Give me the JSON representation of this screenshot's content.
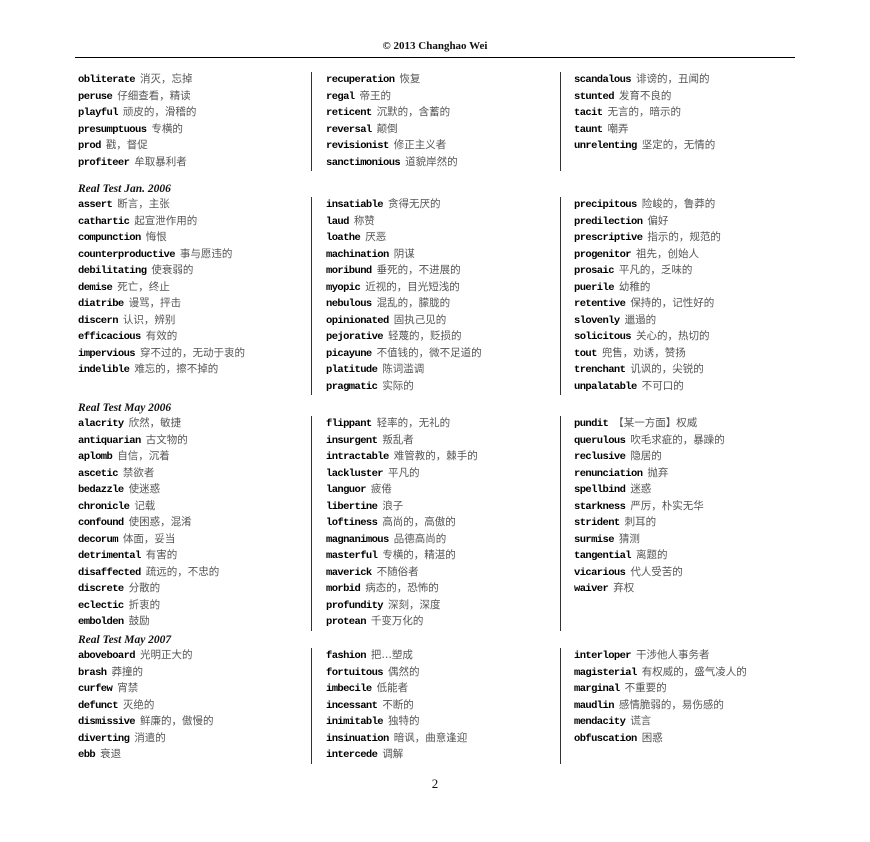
{
  "header": "© 2013 Changhao Wei",
  "page_number": "2",
  "sections": [
    {
      "title": "",
      "columns": [
        [
          {
            "w": "obliterate",
            "d": "消灭，忘掉"
          },
          {
            "w": "peruse",
            "d": "仔细查看，精读"
          },
          {
            "w": "playful",
            "d": "顽皮的，滑稽的"
          },
          {
            "w": "presumptuous",
            "d": "专横的"
          },
          {
            "w": "prod",
            "d": "戳，督促"
          },
          {
            "w": "profiteer",
            "d": "牟取暴利者"
          }
        ],
        [
          {
            "w": "recuperation",
            "d": "恢复"
          },
          {
            "w": "regal",
            "d": "帝王的"
          },
          {
            "w": "reticent",
            "d": "沉默的，含蓄的"
          },
          {
            "w": "reversal",
            "d": "颠倒"
          },
          {
            "w": "revisionist",
            "d": "修正主义者"
          },
          {
            "w": "sanctimonious",
            "d": "道貌岸然的"
          }
        ],
        [
          {
            "w": "scandalous",
            "d": "诽谤的，丑闻的"
          },
          {
            "w": "stunted",
            "d": "发育不良的"
          },
          {
            "w": "tacit",
            "d": "无言的，暗示的"
          },
          {
            "w": "taunt",
            "d": "嘲弄"
          },
          {
            "w": "unrelenting",
            "d": "坚定的，无情的"
          }
        ]
      ]
    },
    {
      "title": "Real Test Jan. 2006",
      "columns": [
        [
          {
            "w": "assert",
            "d": "断言，主张"
          },
          {
            "w": "cathartic",
            "d": "起宣泄作用的"
          },
          {
            "w": "compunction",
            "d": "悔恨"
          },
          {
            "w": "counterproductive",
            "d": "事与愿违的"
          },
          {
            "w": "debilitating",
            "d": "使衰弱的"
          },
          {
            "w": "demise",
            "d": "死亡，终止"
          },
          {
            "w": "diatribe",
            "d": "谩骂，抨击"
          },
          {
            "w": "discern",
            "d": "认识，辨别"
          },
          {
            "w": "efficacious",
            "d": "有效的"
          },
          {
            "w": "impervious",
            "d": "穿不过的，无动于衷的"
          },
          {
            "w": "indelible",
            "d": "难忘的，擦不掉的"
          }
        ],
        [
          {
            "w": "insatiable",
            "d": "贪得无厌的"
          },
          {
            "w": "laud",
            "d": "称赞"
          },
          {
            "w": "loathe",
            "d": "厌恶"
          },
          {
            "w": "machination",
            "d": "阴谋"
          },
          {
            "w": "moribund",
            "d": "垂死的，不进展的"
          },
          {
            "w": "myopic",
            "d": "近视的，目光短浅的"
          },
          {
            "w": "nebulous",
            "d": "混乱的，朦胧的"
          },
          {
            "w": "opinionated",
            "d": "固执己见的"
          },
          {
            "w": "pejorative",
            "d": "轻蔑的，贬损的"
          },
          {
            "w": "picayune",
            "d": "不值钱的，微不足道的"
          },
          {
            "w": "platitude",
            "d": "陈词滥调"
          },
          {
            "w": "pragmatic",
            "d": "实际的"
          }
        ],
        [
          {
            "w": "precipitous",
            "d": "险峻的，鲁莽的"
          },
          {
            "w": "predilection",
            "d": "偏好"
          },
          {
            "w": "prescriptive",
            "d": "指示的，规范的"
          },
          {
            "w": "progenitor",
            "d": "祖先，创始人"
          },
          {
            "w": "prosaic",
            "d": "平凡的，乏味的"
          },
          {
            "w": "puerile",
            "d": "幼稚的"
          },
          {
            "w": "retentive",
            "d": "保持的，记性好的"
          },
          {
            "w": "slovenly",
            "d": "邋遢的"
          },
          {
            "w": "solicitous",
            "d": "关心的，热切的"
          },
          {
            "w": "tout",
            "d": "兜售，劝诱，赞扬"
          },
          {
            "w": "trenchant",
            "d": "讥讽的，尖锐的"
          },
          {
            "w": "unpalatable",
            "d": "不可口的"
          }
        ]
      ]
    },
    {
      "title": "Real Test May 2006",
      "columns": [
        [
          {
            "w": "alacrity",
            "d": "欣然，敏捷"
          },
          {
            "w": "antiquarian",
            "d": "古文物的"
          },
          {
            "w": "aplomb",
            "d": "自信，沉着"
          },
          {
            "w": "ascetic",
            "d": "禁欲者"
          },
          {
            "w": "bedazzle",
            "d": "使迷惑"
          },
          {
            "w": "chronicle",
            "d": "记载"
          },
          {
            "w": "confound",
            "d": "使困惑，混淆"
          },
          {
            "w": "decorum",
            "d": "体面，妥当"
          },
          {
            "w": "detrimental",
            "d": "有害的"
          },
          {
            "w": "disaffected",
            "d": "疏远的，不忠的"
          },
          {
            "w": "discrete",
            "d": "分散的"
          },
          {
            "w": "eclectic",
            "d": "折衷的"
          },
          {
            "w": "embolden",
            "d": "鼓励"
          }
        ],
        [
          {
            "w": "flippant",
            "d": "轻率的，无礼的"
          },
          {
            "w": "insurgent",
            "d": "叛乱者"
          },
          {
            "w": "intractable",
            "d": "难管教的，棘手的"
          },
          {
            "w": "lackluster",
            "d": "平凡的"
          },
          {
            "w": "languor",
            "d": "疲倦"
          },
          {
            "w": "libertine",
            "d": "浪子"
          },
          {
            "w": "loftiness",
            "d": "高尚的，高傲的"
          },
          {
            "w": "magnanimous",
            "d": "品德高尚的"
          },
          {
            "w": "masterful",
            "d": "专横的，精湛的"
          },
          {
            "w": "maverick",
            "d": "不随俗者"
          },
          {
            "w": "morbid",
            "d": "病态的，恐怖的"
          },
          {
            "w": "profundity",
            "d": "深刻，深度"
          },
          {
            "w": "protean",
            "d": "千变万化的"
          }
        ],
        [
          {
            "w": "pundit",
            "d": "【某一方面】权威"
          },
          {
            "w": "querulous",
            "d": "吹毛求疵的，暴躁的"
          },
          {
            "w": "reclusive",
            "d": "隐居的"
          },
          {
            "w": "renunciation",
            "d": "抛弃"
          },
          {
            "w": "spellbind",
            "d": "迷惑"
          },
          {
            "w": "starkness",
            "d": "严厉，朴实无华"
          },
          {
            "w": "strident",
            "d": "刺耳的"
          },
          {
            "w": "surmise",
            "d": "猜测"
          },
          {
            "w": "tangential",
            "d": "离题的"
          },
          {
            "w": "vicarious",
            "d": "代人受苦的"
          },
          {
            "w": "waiver",
            "d": "弃权"
          }
        ]
      ]
    },
    {
      "title": "Real Test May 2007",
      "columns": [
        [
          {
            "w": "aboveboard",
            "d": "光明正大的"
          },
          {
            "w": "brash",
            "d": "莽撞的"
          },
          {
            "w": "curfew",
            "d": "宵禁"
          },
          {
            "w": "defunct",
            "d": "灭绝的"
          },
          {
            "w": "dismissive",
            "d": "鲜廉的，傲慢的"
          },
          {
            "w": "diverting",
            "d": "消遣的"
          },
          {
            "w": "ebb",
            "d": "衰退"
          }
        ],
        [
          {
            "w": "fashion",
            "d": "把…塑成"
          },
          {
            "w": "fortuitous",
            "d": "偶然的"
          },
          {
            "w": "imbecile",
            "d": "低能者"
          },
          {
            "w": "incessant",
            "d": "不断的"
          },
          {
            "w": "inimitable",
            "d": "独特的"
          },
          {
            "w": "insinuation",
            "d": "暗讽，曲意逢迎"
          },
          {
            "w": "intercede",
            "d": "调解"
          }
        ],
        [
          {
            "w": "interloper",
            "d": "干涉他人事务者"
          },
          {
            "w": "magisterial",
            "d": "有权威的，盛气凌人的"
          },
          {
            "w": "marginal",
            "d": "不重要的"
          },
          {
            "w": "maudlin",
            "d": "感情脆弱的，易伤感的"
          },
          {
            "w": "mendacity",
            "d": "谎言"
          },
          {
            "w": "obfuscation",
            "d": "困惑"
          }
        ]
      ]
    }
  ]
}
